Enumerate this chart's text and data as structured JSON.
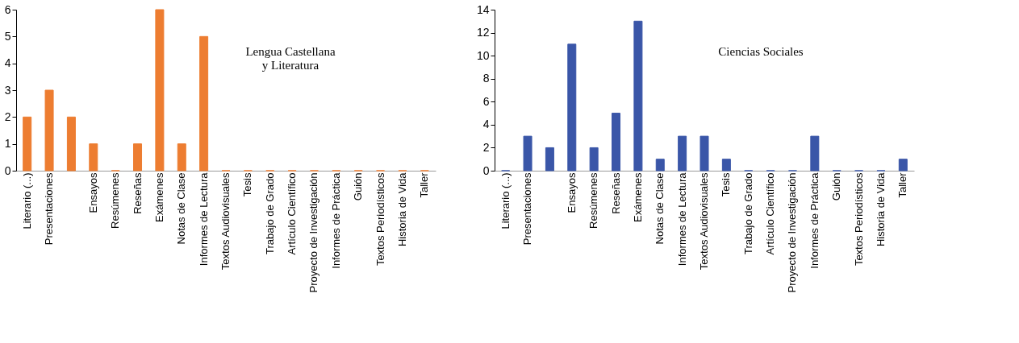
{
  "chart_data": [
    {
      "type": "bar",
      "title": "Lengua Castellana\ny Literatura",
      "categories": [
        "Literario (...)",
        "Presentaciones",
        null,
        "Ensayos",
        "Resúmenes",
        "Reseñas",
        "Exámenes",
        "Notas de Clase",
        "Informes de Lectura",
        "Textos Audiovisuales",
        "Tesis",
        "Trabajo de Grado",
        "Artículo Científico",
        "Proyecto de Investigación",
        "Informes de Práctica",
        "Guión",
        "Textos Periodísticos",
        "Historia de Vida",
        "Taller"
      ],
      "values": [
        2,
        3,
        2,
        1,
        0,
        1,
        6,
        1,
        5,
        0,
        0,
        0,
        0,
        0,
        0,
        0,
        0,
        0,
        0
      ],
      "color": "#ed7d31",
      "ylim": [
        0,
        6
      ],
      "yticks": [
        0,
        1,
        2,
        3,
        4,
        5,
        6
      ],
      "grid": false
    },
    {
      "type": "bar",
      "title": "Ciencias Sociales",
      "categories": [
        "Literario (...)",
        "Presentaciones",
        null,
        "Ensayos",
        "Resúmenes",
        "Reseñas",
        "Exámenes",
        "Notas de Clase",
        "Informes de Lectura",
        "Textos Audiovisuales",
        "Tesis",
        "Trabajo de Grado",
        "Artículo Científico",
        "Proyecto de Investigación",
        "Informes de Práctica",
        "Guión",
        "Textos Periodísticos",
        "Historia de Vida",
        "Taller"
      ],
      "values": [
        0,
        3,
        2,
        11,
        2,
        5,
        13,
        1,
        3,
        3,
        1,
        0,
        0,
        0,
        3,
        0,
        0,
        0,
        1
      ],
      "color": "#3a56a8",
      "ylim": [
        0,
        14
      ],
      "yticks": [
        0,
        2,
        4,
        6,
        8,
        10,
        12,
        14
      ],
      "grid": false
    }
  ]
}
